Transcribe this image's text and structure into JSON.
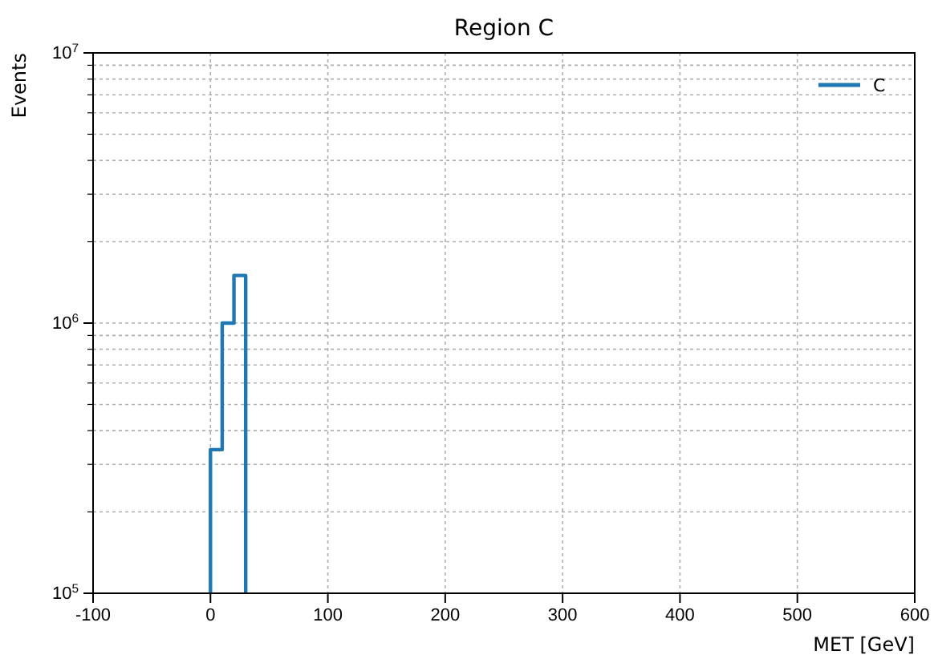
{
  "chart_data": {
    "type": "histogram",
    "title": "Region C",
    "xlabel": "MET [GeV]",
    "ylabel": "Events",
    "bins": [
      0,
      10,
      20,
      30
    ],
    "series": [
      {
        "name": "C",
        "color": "#1f77b4",
        "values": [
          340000,
          1000000,
          1500000
        ]
      }
    ],
    "xlim": [
      -100,
      600
    ],
    "xticks": [
      -100,
      0,
      100,
      200,
      300,
      400,
      500,
      600
    ],
    "ylim": [
      100000,
      10000000
    ],
    "yticks": [
      {
        "value": 100000,
        "label": "10$^{5}$"
      },
      {
        "value": 1000000,
        "label": "10$^{6}$"
      },
      {
        "value": 10000000,
        "label": "10$^{7}$"
      }
    ],
    "log": "y",
    "grid": true,
    "legend": "top right"
  }
}
